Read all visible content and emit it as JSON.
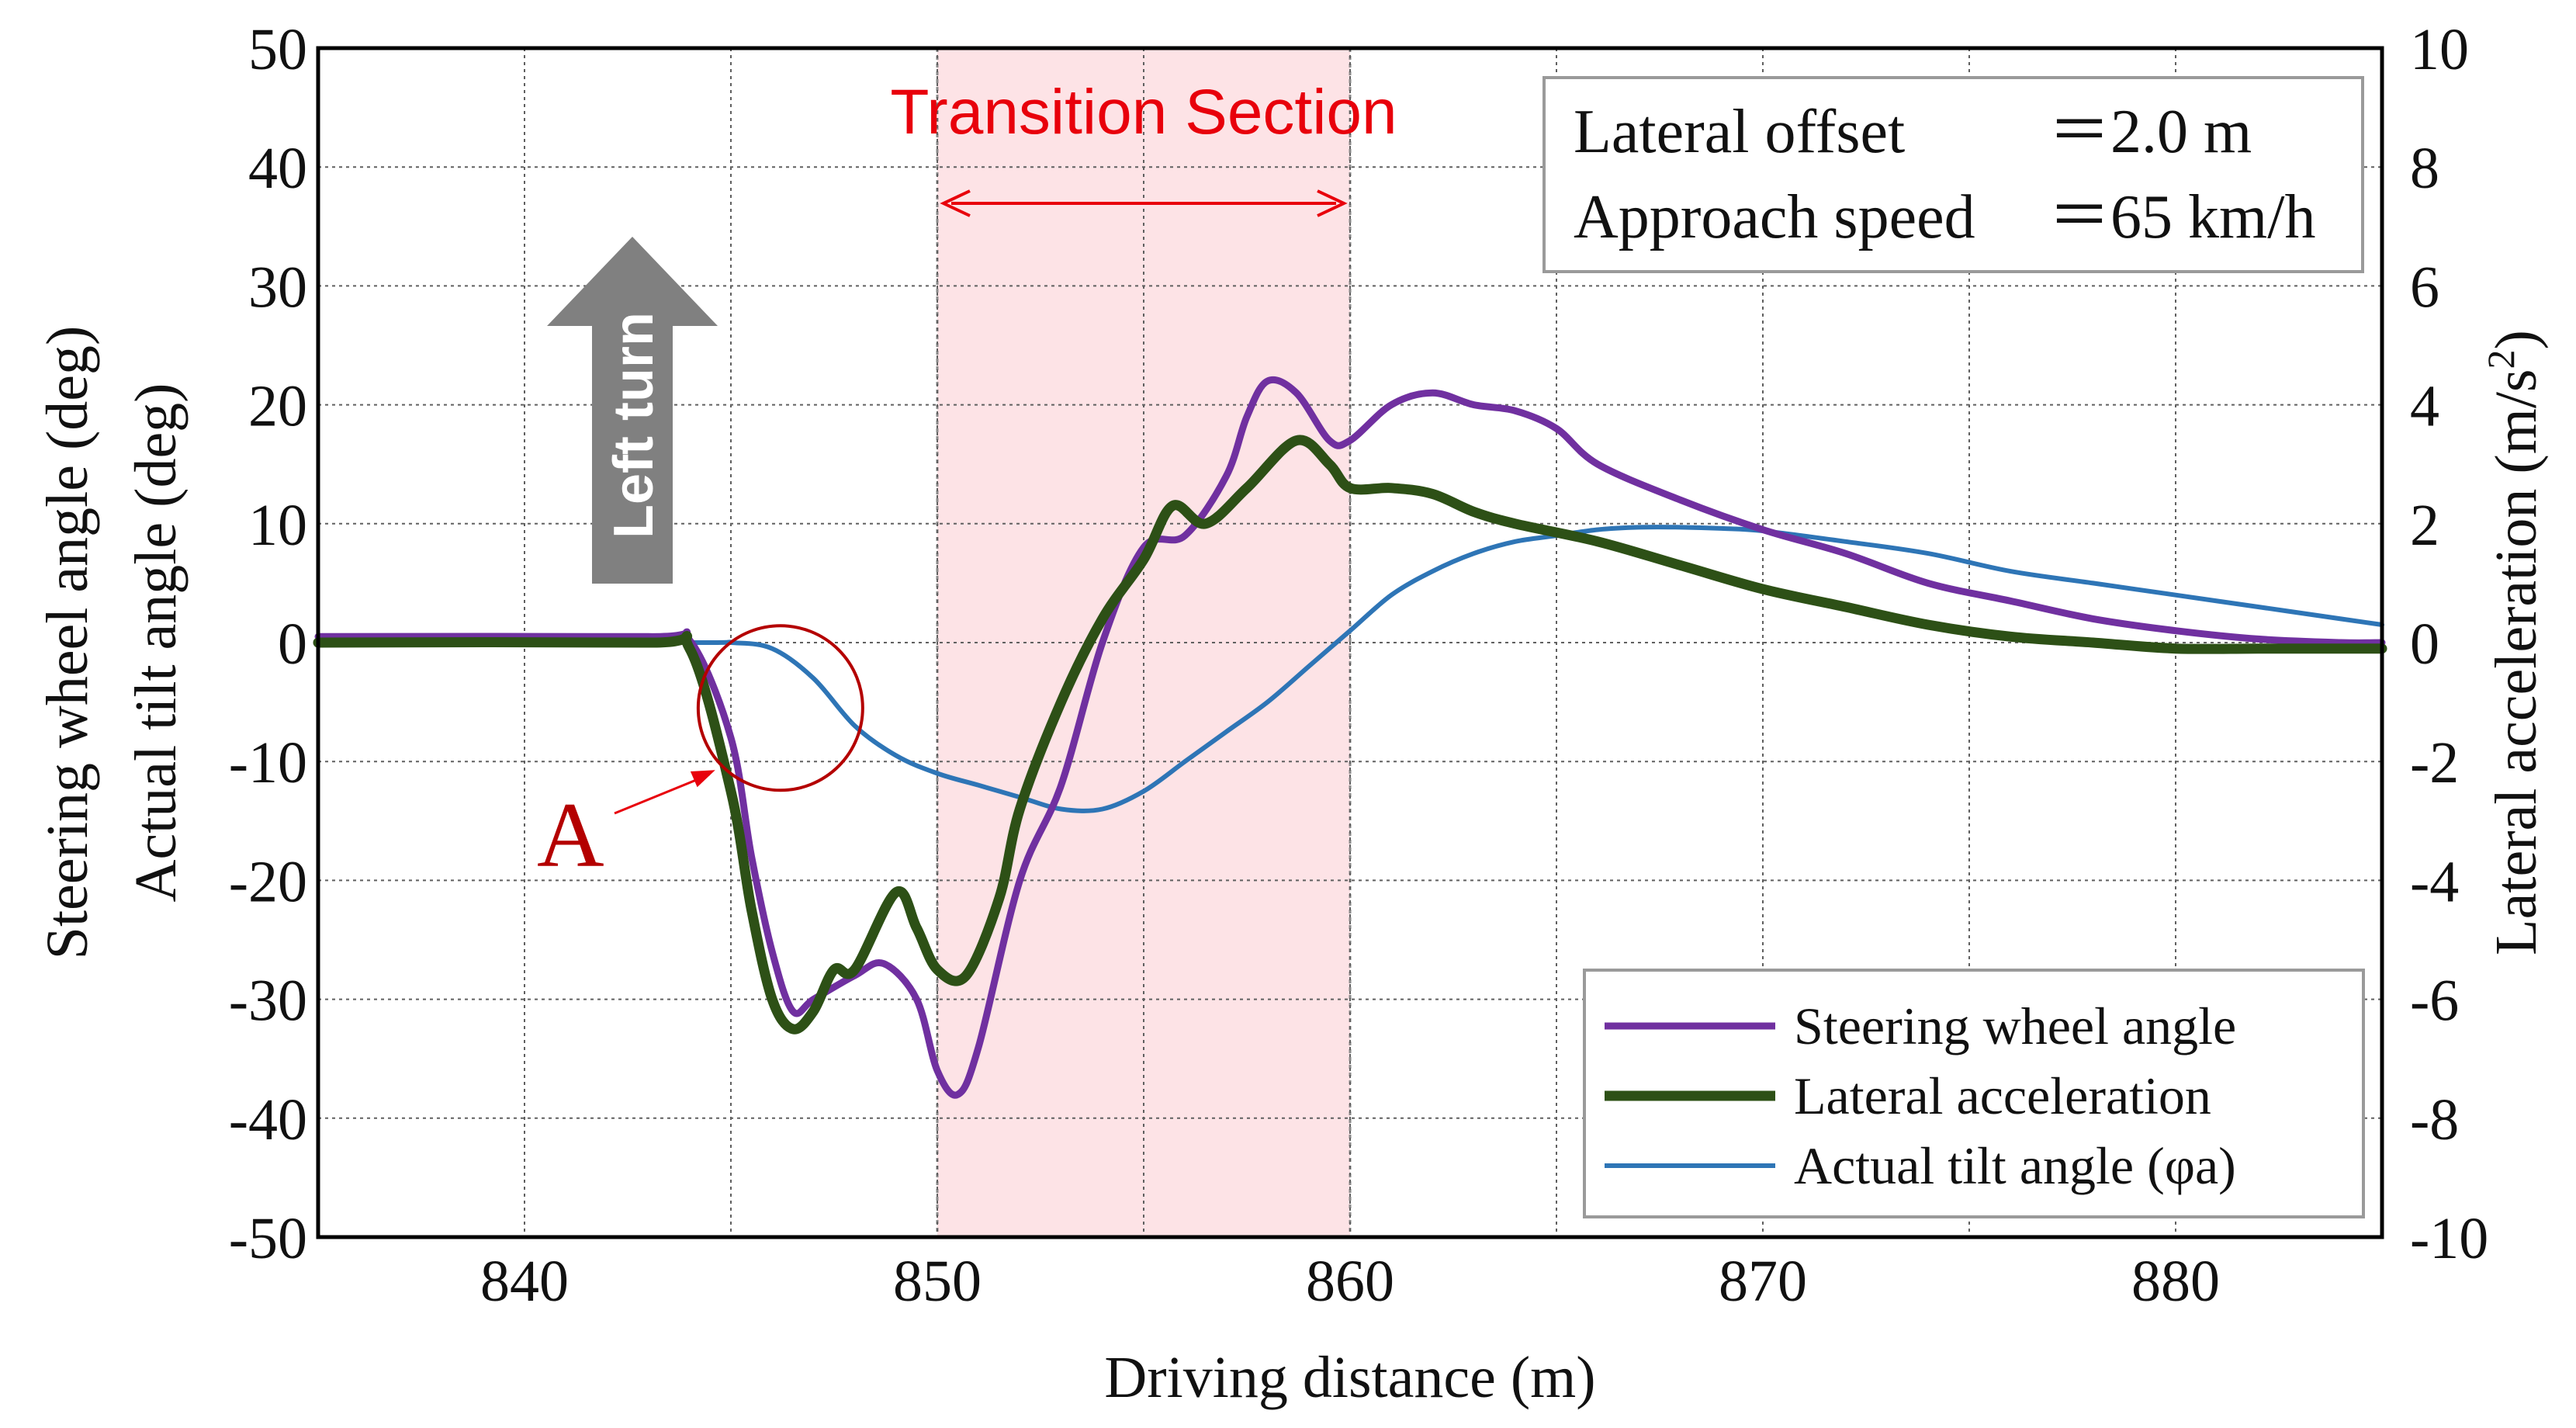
{
  "chart_data": {
    "type": "line",
    "xlabel": "Driving distance (m)",
    "ylabel_left": [
      "Steering wheel angle (deg)",
      "Actual tilt angle (deg)"
    ],
    "ylabel_right": "Lateral acceleration (m/s",
    "ylabel_right_sup": "2",
    "ylabel_right_tail": ")",
    "xlim": [
      835,
      885
    ],
    "ylim_left": [
      -50,
      50
    ],
    "ylim_right": [
      -10,
      10
    ],
    "x_ticks": [
      840,
      850,
      860,
      870,
      880
    ],
    "y_ticks_left": [
      50,
      40,
      30,
      20,
      10,
      0,
      -10,
      -20,
      -30,
      -40,
      -50
    ],
    "y_ticks_right": [
      10,
      8,
      6,
      4,
      2,
      0,
      -2,
      -4,
      -6,
      -8,
      -10
    ],
    "grid": true,
    "legend_position": "bottom-right",
    "annotations": {
      "transition_section": {
        "label": "Transition Section",
        "x_start": 850,
        "x_end": 860,
        "color": "#e8000b"
      },
      "info_box": {
        "line1_label": "Lateral offset",
        "line1_value": "＝2.0 m",
        "line2_label": "Approach speed",
        "line2_value": "＝65 km/h"
      },
      "turn_arrow": "Left turn",
      "marker": {
        "label": "A",
        "x": 846.2,
        "y": -5.5,
        "color": "#b40000"
      }
    },
    "series": [
      {
        "name": "Steering wheel angle",
        "axis": "left",
        "color": "#7030a0",
        "x": [
          835,
          843,
          844,
          845,
          845.5,
          846,
          846.5,
          847,
          848,
          848.7,
          849.5,
          850,
          850.5,
          851,
          852,
          853,
          854,
          855,
          856,
          857,
          857.5,
          858,
          858.7,
          859.5,
          860,
          861,
          862,
          863,
          864,
          865,
          866,
          868,
          870,
          872,
          874,
          876,
          878,
          880,
          882,
          884,
          885
        ],
        "values": [
          0.5,
          0.5,
          0.2,
          -8,
          -18,
          -26,
          -31,
          -30,
          -28,
          -27,
          -30,
          -36,
          -38,
          -34,
          -20,
          -12,
          0,
          8,
          9,
          14,
          19,
          22,
          21,
          17,
          17,
          20,
          21,
          20,
          19.5,
          18,
          15,
          12,
          9.5,
          7.5,
          5,
          3.5,
          2,
          1,
          0.3,
          0,
          0
        ]
      },
      {
        "name": "Lateral acceleration",
        "axis": "right",
        "color": "#2d5016",
        "x": [
          835,
          843,
          844,
          845,
          845.5,
          846,
          846.5,
          847,
          847.5,
          848,
          849,
          849.5,
          850,
          850.7,
          851.5,
          852,
          853,
          854,
          855,
          855.7,
          856.5,
          857.5,
          858.7,
          859.5,
          860,
          861,
          862,
          863,
          864,
          866,
          868,
          870,
          872,
          874,
          876,
          878,
          880,
          882,
          884,
          885
        ],
        "values": [
          0,
          0,
          -0.1,
          -2.5,
          -4.5,
          -6,
          -6.5,
          -6.2,
          -5.5,
          -5.5,
          -4.2,
          -4.8,
          -5.5,
          -5.6,
          -4.3,
          -2.8,
          -1,
          0.4,
          1.4,
          2.3,
          2,
          2.6,
          3.4,
          3,
          2.6,
          2.6,
          2.5,
          2.2,
          2,
          1.7,
          1.3,
          0.9,
          0.6,
          0.3,
          0.1,
          0,
          -0.1,
          -0.1,
          -0.1,
          -0.1
        ]
      },
      {
        "name": "Actual tilt angle",
        "name_suffix": "(φa)",
        "axis": "left",
        "color": "#2e75b6",
        "x": [
          835,
          844,
          845,
          846,
          847,
          848,
          849,
          850,
          851,
          852,
          853,
          854,
          855,
          856,
          857,
          858,
          859,
          860,
          861,
          862,
          863,
          864,
          865,
          866,
          867,
          868,
          869,
          870,
          872,
          874,
          876,
          878,
          880,
          882,
          884,
          885
        ],
        "values": [
          0,
          0,
          0,
          -0.5,
          -3,
          -7,
          -9.5,
          -11,
          -12,
          -13,
          -14,
          -14,
          -12.5,
          -10,
          -7.5,
          -5,
          -2,
          1,
          4,
          6,
          7.5,
          8.5,
          9,
          9.5,
          9.7,
          9.7,
          9.6,
          9.4,
          8.5,
          7.5,
          6,
          5,
          4,
          3,
          2,
          1.5
        ]
      }
    ]
  }
}
